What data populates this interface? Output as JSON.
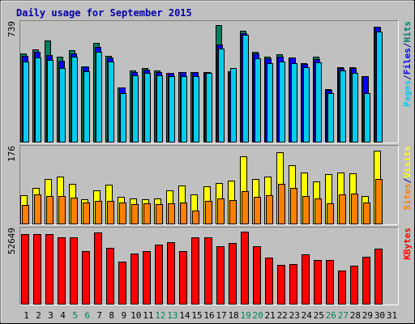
{
  "chart_data": {
    "type": "bar",
    "title": "Daily usage for September 2015",
    "days": [
      "1",
      "2",
      "3",
      "4",
      "5",
      "6",
      "7",
      "8",
      "9",
      "10",
      "11",
      "12",
      "13",
      "14",
      "15",
      "16",
      "17",
      "18",
      "19",
      "20",
      "21",
      "22",
      "23",
      "24",
      "25",
      "26",
      "27",
      "28",
      "29",
      "30",
      "31"
    ],
    "weekend_days": [
      "5",
      "6",
      "12",
      "13",
      "19",
      "20",
      "26",
      "27"
    ],
    "panels": [
      {
        "name": "hits-files-pages",
        "max_label": "739",
        "ymax": 739,
        "legend": [
          "Pages",
          "/",
          "Files",
          "/",
          "Hits"
        ],
        "legend_colors": [
          "#00ccee",
          "#000080",
          "#0000ff",
          "#000080",
          "#008060"
        ],
        "series": [
          {
            "name": "Hits",
            "color": "#008060",
            "values": [
              560,
              585,
              640,
              540,
              580,
              480,
              625,
              545,
              345,
              455,
              470,
              455,
              440,
              445,
              445,
              445,
              739,
              450,
              705,
              570,
              540,
              555,
              535,
              500,
              540,
              335,
              475,
              475,
              420,
              730,
              null
            ]
          },
          {
            "name": "Files",
            "color": "#0000ff",
            "values": [
              545,
              570,
              550,
              515,
              560,
              480,
              600,
              535,
              345,
              445,
              460,
              445,
              440,
              445,
              445,
              445,
              615,
              450,
              690,
              560,
              530,
              540,
              535,
              495,
              525,
              330,
              470,
              470,
              420,
              730,
              null
            ]
          },
          {
            "name": "Pages",
            "color": "#00ccee",
            "values": [
              510,
              535,
              520,
              470,
              540,
              450,
              570,
              510,
              310,
              425,
              440,
              425,
              420,
              420,
              420,
              440,
              590,
              470,
              680,
              530,
              500,
              510,
              500,
              475,
              505,
              310,
              455,
              440,
              310,
              700,
              null
            ]
          }
        ]
      },
      {
        "name": "visits-sites",
        "max_label": "176",
        "ymax": 176,
        "legend": [
          "Sites",
          "/",
          "Visits"
        ],
        "legend_colors": [
          "#ff8000",
          "#000080",
          "#ffff00"
        ],
        "series": [
          {
            "name": "Visits",
            "color": "#ffff00",
            "values": [
              69,
              86,
              107,
              113,
              96,
              59,
              80,
              94,
              65,
              62,
              60,
              61,
              80,
              92,
              70,
              89,
              98,
              104,
              161,
              107,
              113,
              170,
              140,
              123,
              101,
              118,
              123,
              121,
              67,
              174,
              null
            ]
          },
          {
            "name": "Sites",
            "color": "#ff8000",
            "values": [
              46,
              70,
              66,
              67,
              64,
              52,
              56,
              55,
              52,
              47,
              49,
              48,
              50,
              52,
              32,
              55,
              61,
              57,
              79,
              65,
              69,
              95,
              86,
              66,
              62,
              49,
              70,
              72,
              51,
              108,
              null
            ]
          }
        ]
      },
      {
        "name": "kbytes",
        "max_label": "52649",
        "ymax": 52649,
        "legend": [
          "KBytes"
        ],
        "legend_colors": [
          "#ff0000"
        ],
        "series": [
          {
            "name": "KBytes",
            "color": "#ff0000",
            "values": [
              50800,
              50800,
              51000,
              48300,
              48700,
              38800,
              52000,
              41000,
              31000,
              37000,
              38500,
              43000,
              45300,
              38800,
              48500,
              48600,
              42300,
              44300,
              52649,
              42000,
              33700,
              28900,
              29200,
              36300,
              31900,
              32300,
              24700,
              27800,
              34500,
              40300,
              null
            ]
          }
        ]
      }
    ]
  }
}
